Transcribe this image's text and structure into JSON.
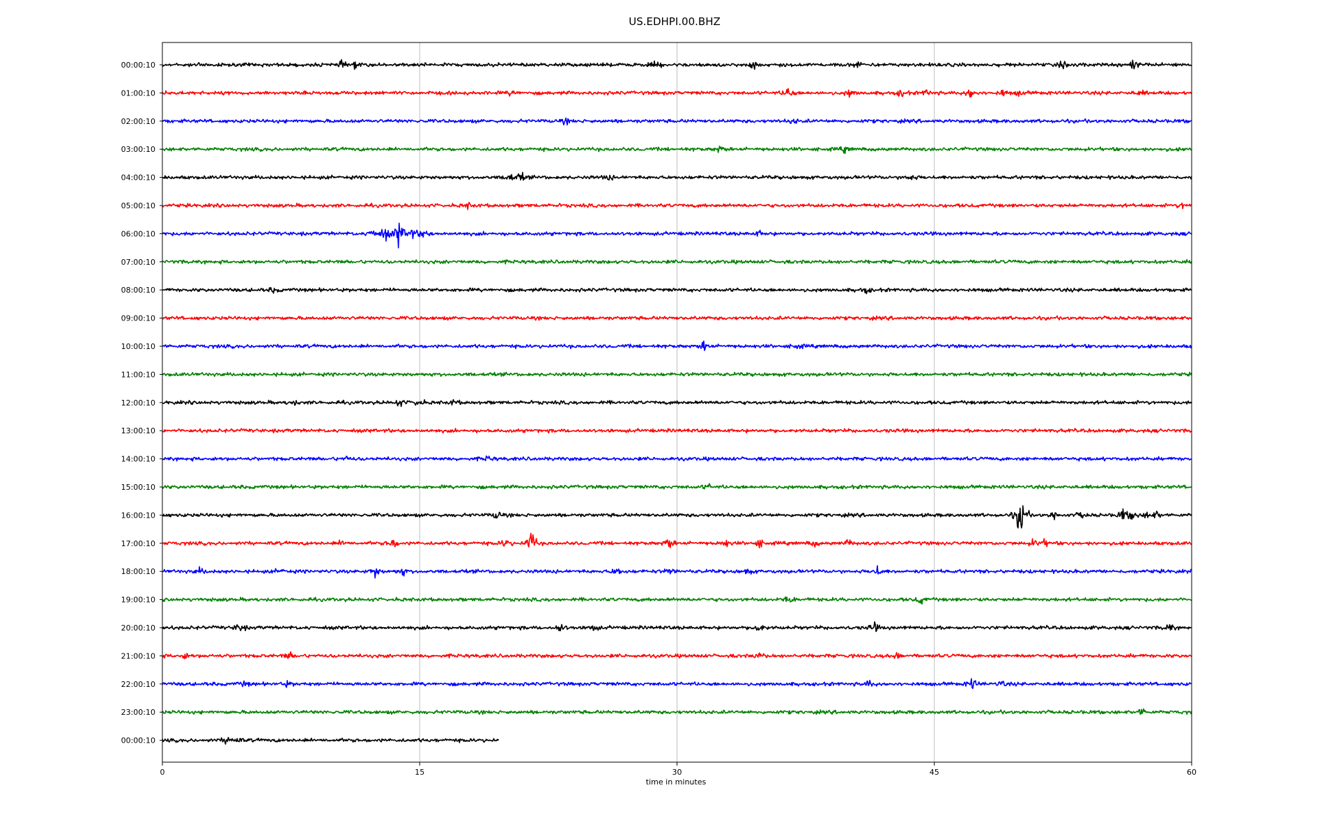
{
  "chart_data": {
    "type": "line",
    "title": "US.EDHPI.00.BHZ",
    "xlabel": "time in minutes",
    "ylabel": "",
    "xlim": [
      0,
      60
    ],
    "x_ticks": [
      "0",
      "15",
      "30",
      "45",
      "60"
    ],
    "x_tick_values": [
      0,
      15,
      30,
      45,
      60
    ],
    "grid": "vertical",
    "colors": [
      "#000000",
      "#ff0000",
      "#0000ff",
      "#008000"
    ],
    "traces": [
      {
        "label": "00:00:10",
        "color": "#000000",
        "duration": 60,
        "noise": 3.5,
        "events": [
          [
            2.3,
            5
          ],
          [
            10.5,
            6
          ],
          [
            11.2,
            5
          ],
          [
            28.8,
            6
          ],
          [
            34.5,
            6
          ],
          [
            40.5,
            6
          ],
          [
            52.5,
            6
          ],
          [
            56.6,
            10
          ]
        ]
      },
      {
        "label": "01:00:10",
        "color": "#ff0000",
        "duration": 60,
        "noise": 3.5,
        "events": [
          [
            20.4,
            6
          ],
          [
            36.5,
            15
          ],
          [
            40.1,
            9
          ],
          [
            43.1,
            8
          ],
          [
            44.6,
            7
          ],
          [
            47.1,
            12
          ],
          [
            49.0,
            6
          ],
          [
            50.0,
            5
          ],
          [
            57.0,
            5
          ]
        ]
      },
      {
        "label": "02:00:10",
        "color": "#0000ff",
        "duration": 60,
        "noise": 3.5,
        "events": [
          [
            23.5,
            5
          ],
          [
            36.8,
            5
          ]
        ]
      },
      {
        "label": "03:00:10",
        "color": "#008000",
        "duration": 60,
        "noise": 3.5,
        "events": [
          [
            32.5,
            8
          ],
          [
            39.8,
            6
          ]
        ]
      },
      {
        "label": "04:00:10",
        "color": "#000000",
        "duration": 60,
        "noise": 3.5,
        "events": [
          [
            20.2,
            10
          ],
          [
            20.9,
            9
          ],
          [
            26.0,
            5
          ],
          [
            43.6,
            8
          ]
        ]
      },
      {
        "label": "05:00:10",
        "color": "#ff0000",
        "duration": 60,
        "noise": 3.5,
        "events": [
          [
            17.8,
            5
          ],
          [
            59.5,
            6
          ]
        ]
      },
      {
        "label": "06:00:10",
        "color": "#0000ff",
        "duration": 60,
        "noise": 3.5,
        "events": [
          [
            12.3,
            12
          ],
          [
            13.0,
            14
          ],
          [
            13.8,
            30
          ],
          [
            14.5,
            12
          ],
          [
            15.2,
            10
          ],
          [
            34.8,
            5
          ]
        ]
      },
      {
        "label": "07:00:10",
        "color": "#008000",
        "duration": 60,
        "noise": 3.5,
        "events": []
      },
      {
        "label": "08:00:10",
        "color": "#000000",
        "duration": 60,
        "noise": 3.5,
        "events": [
          [
            6.5,
            5
          ],
          [
            41.0,
            6
          ]
        ]
      },
      {
        "label": "09:00:10",
        "color": "#ff0000",
        "duration": 60,
        "noise": 3.5,
        "events": []
      },
      {
        "label": "10:00:10",
        "color": "#0000ff",
        "duration": 60,
        "noise": 3.5,
        "events": [
          [
            31.6,
            10
          ],
          [
            37.0,
            5
          ]
        ]
      },
      {
        "label": "11:00:10",
        "color": "#008000",
        "duration": 60,
        "noise": 3.5,
        "events": []
      },
      {
        "label": "12:00:10",
        "color": "#000000",
        "duration": 60,
        "noise": 3.5,
        "events": [
          [
            7.6,
            6
          ],
          [
            13.8,
            8
          ],
          [
            14.9,
            9
          ],
          [
            17.0,
            5
          ]
        ]
      },
      {
        "label": "13:00:10",
        "color": "#ff0000",
        "duration": 60,
        "noise": 3.5,
        "events": []
      },
      {
        "label": "14:00:10",
        "color": "#0000ff",
        "duration": 60,
        "noise": 3.5,
        "events": [
          [
            10.8,
            5
          ],
          [
            19.0,
            5
          ]
        ]
      },
      {
        "label": "15:00:10",
        "color": "#008000",
        "duration": 60,
        "noise": 3.5,
        "events": [
          [
            31.8,
            5
          ]
        ]
      },
      {
        "label": "16:00:10",
        "color": "#000000",
        "duration": 60,
        "noise": 3.5,
        "events": [
          [
            19.5,
            9
          ],
          [
            49.8,
            12
          ],
          [
            50.1,
            45
          ],
          [
            52.0,
            8
          ],
          [
            53.6,
            7
          ],
          [
            56.0,
            12
          ],
          [
            56.6,
            10
          ],
          [
            57.5,
            8
          ],
          [
            58.0,
            7
          ]
        ]
      },
      {
        "label": "17:00:10",
        "color": "#ff0000",
        "duration": 60,
        "noise": 3.5,
        "events": [
          [
            10.5,
            6
          ],
          [
            13.4,
            12
          ],
          [
            20.0,
            10
          ],
          [
            21.5,
            30
          ],
          [
            29.5,
            14
          ],
          [
            32.8,
            9
          ],
          [
            34.8,
            8
          ],
          [
            38.0,
            6
          ],
          [
            40.0,
            7
          ],
          [
            50.8,
            8
          ],
          [
            51.5,
            7
          ]
        ]
      },
      {
        "label": "18:00:10",
        "color": "#0000ff",
        "duration": 60,
        "noise": 3.5,
        "events": [
          [
            2.2,
            6
          ],
          [
            6.9,
            6
          ],
          [
            12.4,
            12
          ],
          [
            14.0,
            8
          ],
          [
            26.5,
            9
          ],
          [
            29.6,
            6
          ],
          [
            34.1,
            6
          ],
          [
            41.7,
            11
          ]
        ]
      },
      {
        "label": "19:00:10",
        "color": "#008000",
        "duration": 60,
        "noise": 3.5,
        "events": [
          [
            36.5,
            9
          ],
          [
            44.2,
            9
          ]
        ]
      },
      {
        "label": "20:00:10",
        "color": "#000000",
        "duration": 60,
        "noise": 3.5,
        "events": [
          [
            4.5,
            10
          ],
          [
            23.2,
            10
          ],
          [
            25.1,
            7
          ],
          [
            34.8,
            12
          ],
          [
            41.5,
            9
          ],
          [
            58.7,
            9
          ]
        ]
      },
      {
        "label": "21:00:10",
        "color": "#ff0000",
        "duration": 60,
        "noise": 3.5,
        "events": [
          [
            1.3,
            6
          ],
          [
            7.4,
            8
          ],
          [
            34.8,
            7
          ],
          [
            42.8,
            6
          ]
        ]
      },
      {
        "label": "22:00:10",
        "color": "#0000ff",
        "duration": 60,
        "noise": 3.5,
        "events": [
          [
            4.8,
            5
          ],
          [
            7.3,
            5
          ],
          [
            41.2,
            7
          ],
          [
            47.2,
            12
          ],
          [
            48.9,
            6
          ]
        ]
      },
      {
        "label": "23:00:10",
        "color": "#008000",
        "duration": 60,
        "noise": 3.5,
        "events": [
          [
            57.1,
            9
          ]
        ]
      },
      {
        "label": "00:00:10",
        "color": "#000000",
        "duration": 19.6,
        "noise": 3.5,
        "events": [
          [
            3.8,
            8
          ],
          [
            4.3,
            7
          ]
        ]
      }
    ]
  }
}
